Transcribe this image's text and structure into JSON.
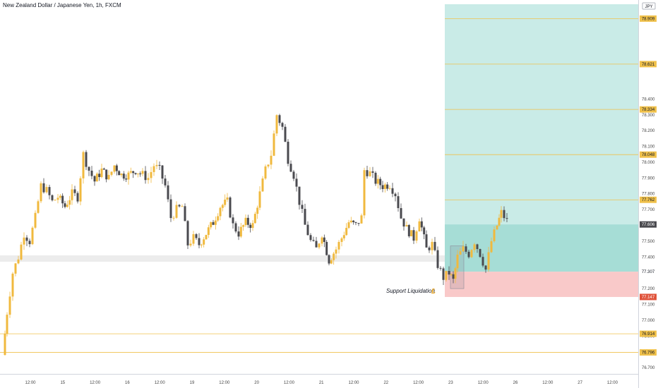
{
  "header": {
    "title": "New Zealand Dollar / Japanese Yen, 1h, FXCM"
  },
  "currency_badge": "JPY",
  "annotation": {
    "text": "Support Liquidation",
    "icon": "pound-icon",
    "glyph": "£"
  },
  "colors": {
    "bull": "#f0b93e",
    "bear": "#4a4a4f",
    "target_zone": "#bfe7e3",
    "stop_zone": "#f9c9c9",
    "level_line": "#f0c14b",
    "support_band": "#ececec"
  },
  "chart_data": {
    "type": "candlestick",
    "ylim": [
      76.66,
      79.0
    ],
    "y_ticks": [
      "78.400",
      "78.300",
      "78.200",
      "78.100",
      "78.000",
      "77.900",
      "77.800",
      "77.700",
      "77.500",
      "77.400",
      "77.200",
      "77.100",
      "77.000",
      "76.900",
      "76.800",
      "76.700"
    ],
    "x_ticks": [
      "12:00",
      "15",
      "12:00",
      "16",
      "12:00",
      "19",
      "12:00",
      "20",
      "12:00",
      "21",
      "12:00",
      "22",
      "12:00",
      "23",
      "12:00",
      "26",
      "12:00",
      "27",
      "12:00"
    ],
    "level_labels": [
      {
        "value": 78.909,
        "label": "78.909",
        "style": "gold"
      },
      {
        "value": 78.621,
        "label": "78.621",
        "style": "gold"
      },
      {
        "value": 78.334,
        "label": "78.334",
        "style": "gold"
      },
      {
        "value": 78.048,
        "label": "78.048",
        "style": "gold"
      },
      {
        "value": 77.762,
        "label": "77.762",
        "style": "gold"
      },
      {
        "value": 77.606,
        "label": "77.606",
        "style": "current"
      },
      {
        "value": 77.307,
        "label": "77.307",
        "style": "plain"
      },
      {
        "value": 77.147,
        "label": "77.147",
        "style": "stop"
      },
      {
        "value": 76.914,
        "label": "76.914",
        "style": "gold"
      },
      {
        "value": 76.796,
        "label": "76.796",
        "style": "gold"
      }
    ],
    "horizontal_lines": [
      78.909,
      78.621,
      78.334,
      78.048,
      77.762,
      76.914,
      76.796
    ],
    "target_zone": {
      "from": 77.307,
      "to": 79.0
    },
    "entry_zone": {
      "from": 77.307,
      "to": 77.606
    },
    "stop_zone": {
      "from": 77.147,
      "to": 77.307
    },
    "support_band": {
      "from": 77.37,
      "to": 77.41
    },
    "start_point": [
      4,
      76.78
    ],
    "waypoints": [
      [
        10,
        77.05
      ],
      [
        18,
        77.3
      ],
      [
        26,
        77.4
      ],
      [
        34,
        77.55
      ],
      [
        42,
        77.5
      ],
      [
        50,
        77.65
      ],
      [
        58,
        77.85
      ],
      [
        66,
        77.82
      ],
      [
        74,
        77.75
      ],
      [
        82,
        77.78
      ],
      [
        92,
        77.72
      ],
      [
        102,
        77.8
      ],
      [
        110,
        77.78
      ],
      [
        118,
        78.05
      ],
      [
        126,
        77.95
      ],
      [
        134,
        77.88
      ],
      [
        144,
        77.95
      ],
      [
        154,
        77.9
      ],
      [
        162,
        77.98
      ],
      [
        172,
        77.92
      ],
      [
        182,
        77.92
      ],
      [
        192,
        77.95
      ],
      [
        202,
        77.92
      ],
      [
        210,
        77.9
      ],
      [
        218,
        77.98
      ],
      [
        226,
        77.95
      ],
      [
        234,
        77.85
      ],
      [
        242,
        77.65
      ],
      [
        250,
        77.7
      ],
      [
        258,
        77.72
      ],
      [
        266,
        77.48
      ],
      [
        274,
        77.52
      ],
      [
        282,
        77.48
      ],
      [
        292,
        77.55
      ],
      [
        302,
        77.62
      ],
      [
        312,
        77.72
      ],
      [
        322,
        77.75
      ],
      [
        330,
        77.6
      ],
      [
        338,
        77.55
      ],
      [
        348,
        77.62
      ],
      [
        358,
        77.6
      ],
      [
        368,
        77.8
      ],
      [
        376,
        77.95
      ],
      [
        384,
        78.05
      ],
      [
        392,
        78.3
      ],
      [
        400,
        78.22
      ],
      [
        408,
        78.02
      ],
      [
        416,
        77.92
      ],
      [
        424,
        77.75
      ],
      [
        432,
        77.6
      ],
      [
        440,
        77.5
      ],
      [
        448,
        77.45
      ],
      [
        456,
        77.55
      ],
      [
        466,
        77.38
      ],
      [
        476,
        77.45
      ],
      [
        484,
        77.52
      ],
      [
        494,
        77.62
      ],
      [
        504,
        77.6
      ],
      [
        512,
        77.65
      ],
      [
        516,
        77.95
      ],
      [
        524,
        77.93
      ],
      [
        532,
        77.88
      ],
      [
        542,
        77.85
      ],
      [
        552,
        77.86
      ],
      [
        560,
        77.8
      ],
      [
        568,
        77.65
      ],
      [
        576,
        77.58
      ],
      [
        586,
        77.52
      ],
      [
        594,
        77.65
      ],
      [
        604,
        77.45
      ],
      [
        612,
        77.48
      ],
      [
        620,
        77.35
      ],
      [
        628,
        77.27
      ],
      [
        636,
        77.3
      ],
      [
        642,
        77.25
      ],
      [
        648,
        77.4
      ],
      [
        656,
        77.45
      ],
      [
        664,
        77.42
      ],
      [
        672,
        77.5
      ],
      [
        680,
        77.42
      ],
      [
        688,
        77.32
      ],
      [
        696,
        77.5
      ],
      [
        704,
        77.6
      ],
      [
        710,
        77.68
      ],
      [
        718,
        77.63
      ]
    ]
  }
}
